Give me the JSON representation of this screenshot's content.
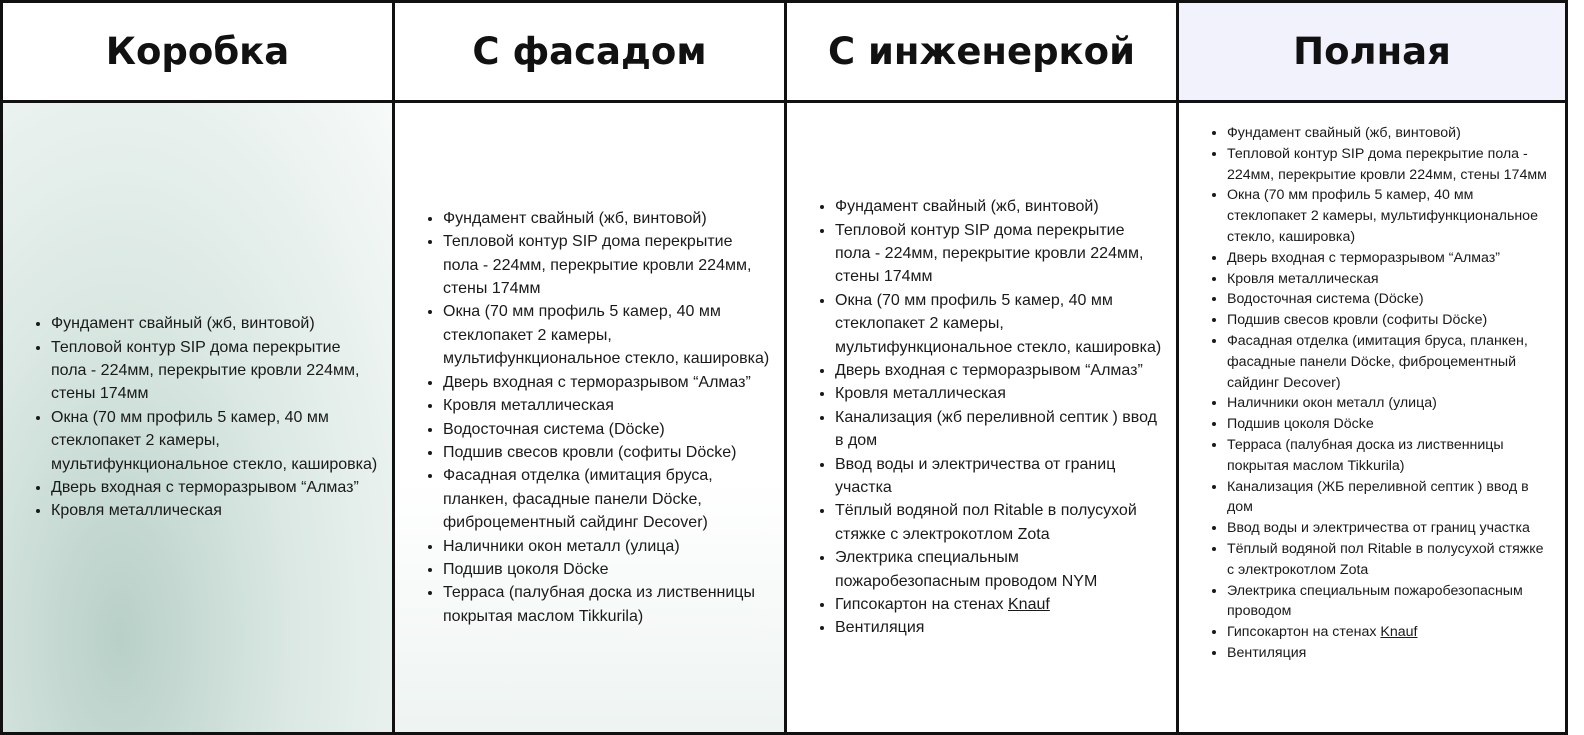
{
  "columns": [
    {
      "title": "Коробка",
      "items": [
        "Фундамент свайный (жб, винтовой)",
        "Тепловой контур SIP дома перекрытие пола - 224мм, перекрытие кровли 224мм, стены 174мм",
        "Окна (70 мм профиль 5 камер, 40 мм стеклопакет 2 камеры, мультифункциональное стекло, кашировка)",
        "Дверь входная с терморазрывом “Алмаз”",
        "Кровля металлическая"
      ]
    },
    {
      "title": "С фасадом",
      "items": [
        "Фундамент свайный (жб, винтовой)",
        "Тепловой контур SIP дома перекрытие пола - 224мм, перекрытие кровли 224мм, стены 174мм",
        "Окна (70 мм профиль 5 камер, 40 мм стеклопакет 2 камеры, мультифункциональное стекло, кашировка)",
        "Дверь входная с терморазрывом “Алмаз”",
        "Кровля металлическая",
        "Водосточная система (Döcke)",
        "Подшив свесов кровли (софиты Döcke)",
        "Фасадная отделка (имитация бруса, планкен, фасадные панели Döcke, фиброцементный сайдинг Decover)",
        "Наличники окон металл (улица)",
        "Подшив цоколя Döcke",
        "Терраса (палубная доска из лиственницы покрытая маслом Tikkurila)"
      ]
    },
    {
      "title": "С инженеркой",
      "items": [
        "Фундамент свайный (жб, винтовой)",
        "Тепловой контур SIP дома перекрытие пола - 224мм, перекрытие кровли 224мм, стены 174мм",
        "Окна (70 мм профиль 5 камер, 40 мм стеклопакет 2 камеры, мультифункциональное стекло, кашировка)",
        "Дверь входная с терморазрывом “Алмаз”",
        "Кровля металлическая",
        "Канализация (жб переливной септик ) ввод в дом",
        "Ввод воды и электричества от границ участка",
        "Тёплый водяной пол Ritable в полусухой стяжке с электрокотлом Zota",
        "Электрика специальным пожаробезопасным проводом NYM",
        {
          "text": "Гипсокартон на стенах",
          "link": "Knauf"
        },
        "Вентиляция"
      ]
    },
    {
      "title": "Полная",
      "items": [
        "Фундамент свайный (жб, винтовой)",
        "Тепловой контур SIP дома перекрытие пола - 224мм, перекрытие кровли 224мм, стены 174мм",
        "Окна (70 мм профиль 5 камер, 40 мм стеклопакет 2 камеры, мультифункциональное стекло, кашировка)",
        "Дверь входная с терморазрывом “Алмаз”",
        "Кровля металлическая",
        "Водосточная система (Döcke)",
        "Подшив свесов кровли (софиты Döcke)",
        "Фасадная отделка (имитация бруса, планкен, фасадные панели Döcke, фиброцементный сайдинг Decover)",
        "Наличники окон металл (улица)",
        "Подшив цоколя Döcke",
        "Терраса (палубная доска из лиственницы покрытая маслом Tikkurila)",
        "Канализация (ЖБ переливной септик ) ввод в дом",
        "Ввод воды и электричества от границ участка",
        "Тёплый водяной пол Ritable в полусухой стяжке с электрокотлом Zota",
        "Электрика специальным пожаробезопасным проводом",
        {
          "text": "Гипсокартон на стенах",
          "link": "Knauf"
        },
        "Вентиляция"
      ]
    }
  ]
}
